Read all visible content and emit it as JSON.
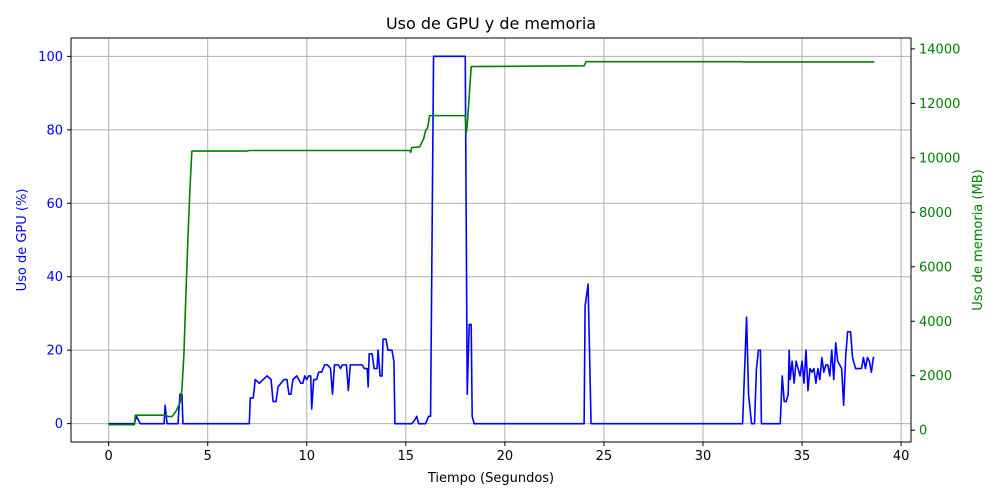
{
  "chart_data": {
    "type": "line",
    "title": "Uso de GPU y de memoria",
    "xlabel": "Tiempo (Segundos)",
    "ylabel_left": "Uso de GPU (%)",
    "ylabel_right": "Uso de memoria (MB)",
    "xlim": [
      -1.9,
      40.5
    ],
    "ylim_left": [
      -5,
      105
    ],
    "ylim_right": [
      -433,
      14400
    ],
    "x_ticks": [
      0,
      5,
      10,
      15,
      20,
      25,
      30,
      35,
      40
    ],
    "y_ticks_left": [
      0,
      20,
      40,
      60,
      80,
      100
    ],
    "y_ticks_right": [
      0,
      2000,
      4000,
      6000,
      8000,
      10000,
      12000,
      14000
    ],
    "grid": true,
    "colors": {
      "gpu": "#0000ff",
      "memory": "#008000",
      "axis_left": "#0000ff",
      "axis_right": "#008000"
    },
    "series": [
      {
        "axis": "left",
        "points": [
          [
            0,
            0
          ],
          [
            1.3,
            0
          ],
          [
            1.4,
            2
          ],
          [
            1.6,
            0
          ],
          [
            2.8,
            0
          ],
          [
            2.85,
            5
          ],
          [
            2.95,
            0
          ],
          [
            3.5,
            0
          ],
          [
            3.6,
            8
          ],
          [
            3.7,
            8
          ],
          [
            3.75,
            0
          ],
          [
            7.1,
            0
          ],
          [
            7.15,
            7
          ],
          [
            7.3,
            7
          ],
          [
            7.4,
            12
          ],
          [
            7.6,
            11
          ],
          [
            7.8,
            12
          ],
          [
            8.0,
            13
          ],
          [
            8.2,
            12
          ],
          [
            8.3,
            6
          ],
          [
            8.45,
            6
          ],
          [
            8.55,
            10
          ],
          [
            8.7,
            11
          ],
          [
            8.85,
            12
          ],
          [
            9.0,
            12
          ],
          [
            9.1,
            8
          ],
          [
            9.2,
            8
          ],
          [
            9.3,
            12
          ],
          [
            9.5,
            13
          ],
          [
            9.7,
            11
          ],
          [
            9.8,
            11
          ],
          [
            9.9,
            13
          ],
          [
            10.0,
            12
          ],
          [
            10.1,
            13
          ],
          [
            10.2,
            13
          ],
          [
            10.25,
            4
          ],
          [
            10.35,
            12
          ],
          [
            10.5,
            12
          ],
          [
            10.6,
            14
          ],
          [
            10.75,
            14
          ],
          [
            10.9,
            16
          ],
          [
            11.05,
            16
          ],
          [
            11.2,
            15
          ],
          [
            11.3,
            8
          ],
          [
            11.4,
            16
          ],
          [
            11.6,
            16
          ],
          [
            11.7,
            15
          ],
          [
            11.8,
            16
          ],
          [
            12.0,
            16
          ],
          [
            12.1,
            9
          ],
          [
            12.2,
            16
          ],
          [
            12.5,
            16
          ],
          [
            12.8,
            16
          ],
          [
            12.9,
            15
          ],
          [
            13.05,
            15
          ],
          [
            13.1,
            10
          ],
          [
            13.15,
            19
          ],
          [
            13.3,
            19
          ],
          [
            13.4,
            15
          ],
          [
            13.55,
            15
          ],
          [
            13.6,
            20
          ],
          [
            13.7,
            13
          ],
          [
            13.8,
            13
          ],
          [
            13.85,
            23
          ],
          [
            14.0,
            23
          ],
          [
            14.1,
            20
          ],
          [
            14.3,
            20
          ],
          [
            14.4,
            17
          ],
          [
            14.45,
            0
          ],
          [
            15.3,
            0
          ],
          [
            15.45,
            1
          ],
          [
            15.55,
            2
          ],
          [
            15.65,
            0
          ],
          [
            16.0,
            0
          ],
          [
            16.15,
            2
          ],
          [
            16.25,
            2
          ],
          [
            16.4,
            100
          ],
          [
            18.0,
            100
          ],
          [
            18.1,
            8
          ],
          [
            18.2,
            27
          ],
          [
            18.3,
            27
          ],
          [
            18.35,
            2
          ],
          [
            18.45,
            0
          ],
          [
            24.0,
            0
          ],
          [
            24.05,
            32
          ],
          [
            24.2,
            38
          ],
          [
            24.35,
            0
          ],
          [
            32.0,
            0
          ],
          [
            32.2,
            29
          ],
          [
            32.3,
            8
          ],
          [
            32.45,
            0
          ],
          [
            32.6,
            0
          ],
          [
            32.7,
            15
          ],
          [
            32.8,
            20
          ],
          [
            32.9,
            20
          ],
          [
            32.95,
            0
          ],
          [
            33.9,
            0
          ],
          [
            34.0,
            13
          ],
          [
            34.1,
            6
          ],
          [
            34.2,
            6
          ],
          [
            34.3,
            8
          ],
          [
            34.35,
            20
          ],
          [
            34.4,
            12
          ],
          [
            34.5,
            17
          ],
          [
            34.6,
            11
          ],
          [
            34.7,
            17
          ],
          [
            34.8,
            15
          ],
          [
            34.9,
            13
          ],
          [
            35.0,
            17
          ],
          [
            35.1,
            11
          ],
          [
            35.2,
            20
          ],
          [
            35.3,
            9
          ],
          [
            35.4,
            15
          ],
          [
            35.5,
            14
          ],
          [
            35.6,
            15
          ],
          [
            35.7,
            11
          ],
          [
            35.8,
            15
          ],
          [
            35.9,
            12
          ],
          [
            36.0,
            18
          ],
          [
            36.1,
            14
          ],
          [
            36.2,
            16
          ],
          [
            36.3,
            16
          ],
          [
            36.4,
            13
          ],
          [
            36.5,
            20
          ],
          [
            36.6,
            12
          ],
          [
            36.7,
            22
          ],
          [
            36.8,
            17
          ],
          [
            36.9,
            16
          ],
          [
            37.0,
            15
          ],
          [
            37.1,
            5
          ],
          [
            37.2,
            18
          ],
          [
            37.3,
            25
          ],
          [
            37.45,
            25
          ],
          [
            37.55,
            18
          ],
          [
            37.7,
            15
          ],
          [
            37.9,
            15
          ],
          [
            38.0,
            15
          ],
          [
            38.1,
            18
          ],
          [
            38.2,
            15
          ],
          [
            38.3,
            18
          ],
          [
            38.4,
            17
          ],
          [
            38.5,
            14
          ],
          [
            38.6,
            18
          ],
          [
            38.65,
            18
          ]
        ]
      },
      {
        "axis": "right",
        "points": [
          [
            0,
            200
          ],
          [
            1.3,
            200
          ],
          [
            1.35,
            550
          ],
          [
            2.9,
            550
          ],
          [
            3.0,
            500
          ],
          [
            3.2,
            500
          ],
          [
            3.4,
            700
          ],
          [
            3.6,
            1000
          ],
          [
            3.7,
            1500
          ],
          [
            3.8,
            2800
          ],
          [
            3.9,
            5000
          ],
          [
            4.0,
            7000
          ],
          [
            4.1,
            8800
          ],
          [
            4.2,
            10250
          ],
          [
            7.0,
            10250
          ],
          [
            7.1,
            10270
          ],
          [
            15.2,
            10270
          ],
          [
            15.25,
            10200
          ],
          [
            15.3,
            10380
          ],
          [
            15.7,
            10400
          ],
          [
            15.9,
            10700
          ],
          [
            16.0,
            11000
          ],
          [
            16.1,
            11100
          ],
          [
            16.2,
            11550
          ],
          [
            18.0,
            11550
          ],
          [
            18.05,
            10900
          ],
          [
            18.1,
            11200
          ],
          [
            18.3,
            13350
          ],
          [
            24.0,
            13380
          ],
          [
            24.1,
            13530
          ],
          [
            32.0,
            13530
          ],
          [
            32.05,
            13520
          ],
          [
            38.65,
            13520
          ]
        ]
      }
    ]
  }
}
